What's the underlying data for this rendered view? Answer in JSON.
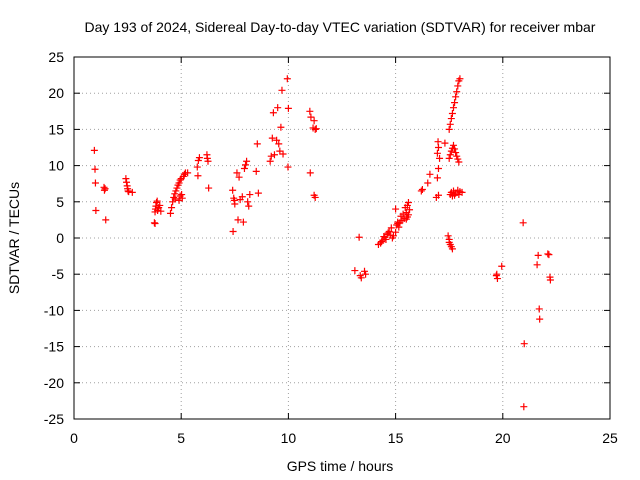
{
  "chart_data": {
    "type": "scatter",
    "title": "Day 193 of 2024, Sidereal Day-to-day VTEC variation (SDTVAR) for receiver mbar",
    "xlabel": "GPS time / hours",
    "ylabel": "SDTVAR / TECUs",
    "xlim": [
      0,
      25
    ],
    "ylim": [
      -25,
      25
    ],
    "xticks": [
      0,
      5,
      10,
      15,
      20,
      25
    ],
    "yticks": [
      25,
      20,
      15,
      10,
      5,
      0,
      -5,
      -10,
      -15,
      -20,
      -25
    ],
    "grid": true,
    "marker": "+",
    "color": "#ff0000",
    "series": [
      {
        "name": "SDTVAR",
        "points": [
          [
            0.95,
            12.1
          ],
          [
            0.98,
            9.5
          ],
          [
            1.0,
            7.6
          ],
          [
            1.02,
            3.8
          ],
          [
            1.4,
            7.0
          ],
          [
            1.42,
            6.6
          ],
          [
            1.45,
            6.8
          ],
          [
            1.48,
            2.5
          ],
          [
            2.42,
            8.2
          ],
          [
            2.45,
            7.7
          ],
          [
            2.48,
            7.2
          ],
          [
            2.5,
            6.8
          ],
          [
            2.52,
            6.5
          ],
          [
            2.55,
            6.4
          ],
          [
            2.72,
            6.3
          ],
          [
            3.75,
            2.1
          ],
          [
            3.78,
            3.6
          ],
          [
            3.8,
            4.0
          ],
          [
            3.82,
            4.4
          ],
          [
            3.85,
            4.9
          ],
          [
            3.88,
            5.1
          ],
          [
            3.9,
            3.8
          ],
          [
            3.95,
            4.2
          ],
          [
            4.0,
            4.5
          ],
          [
            4.05,
            3.7
          ],
          [
            3.78,
            2.0
          ],
          [
            4.5,
            3.4
          ],
          [
            4.55,
            4.2
          ],
          [
            4.6,
            5.0
          ],
          [
            4.65,
            5.6
          ],
          [
            4.7,
            6.1
          ],
          [
            4.72,
            5.4
          ],
          [
            4.75,
            6.5
          ],
          [
            4.8,
            6.9
          ],
          [
            4.85,
            7.3
          ],
          [
            4.9,
            7.6
          ],
          [
            4.95,
            8.0
          ],
          [
            5.0,
            8.2
          ],
          [
            5.02,
            6.0
          ],
          [
            5.05,
            5.5
          ],
          [
            5.1,
            8.5
          ],
          [
            5.15,
            8.8
          ],
          [
            5.2,
            9.0
          ],
          [
            5.3,
            9.0
          ],
          [
            4.9,
            5.2
          ],
          [
            4.95,
            5.8
          ],
          [
            5.75,
            9.8
          ],
          [
            5.8,
            10.7
          ],
          [
            5.85,
            11.1
          ],
          [
            5.78,
            8.6
          ],
          [
            6.2,
            11.5
          ],
          [
            6.22,
            11.0
          ],
          [
            6.25,
            10.6
          ],
          [
            6.28,
            6.9
          ],
          [
            7.4,
            6.6
          ],
          [
            7.45,
            5.5
          ],
          [
            7.48,
            5.2
          ],
          [
            7.5,
            4.7
          ],
          [
            7.42,
            0.9
          ],
          [
            7.6,
            9.0
          ],
          [
            7.7,
            8.4
          ],
          [
            7.65,
            2.5
          ],
          [
            7.75,
            5.3
          ],
          [
            7.85,
            5.7
          ],
          [
            7.9,
            2.2
          ],
          [
            7.95,
            9.6
          ],
          [
            8.0,
            10.1
          ],
          [
            8.05,
            10.6
          ],
          [
            8.1,
            5.0
          ],
          [
            8.15,
            4.4
          ],
          [
            8.2,
            6.0
          ],
          [
            8.5,
            9.2
          ],
          [
            8.55,
            13.0
          ],
          [
            8.6,
            6.2
          ],
          [
            9.15,
            10.6
          ],
          [
            9.2,
            11.3
          ],
          [
            9.25,
            13.8
          ],
          [
            9.3,
            17.3
          ],
          [
            9.35,
            11.5
          ],
          [
            9.45,
            13.5
          ],
          [
            9.5,
            18.0
          ],
          [
            9.55,
            13.0
          ],
          [
            9.6,
            12.0
          ],
          [
            9.65,
            15.3
          ],
          [
            9.7,
            20.4
          ],
          [
            9.75,
            11.6
          ],
          [
            9.95,
            22.0
          ],
          [
            10.0,
            17.9
          ],
          [
            9.98,
            9.8
          ],
          [
            11.0,
            17.5
          ],
          [
            11.05,
            16.7
          ],
          [
            11.02,
            9.0
          ],
          [
            11.15,
            15.2
          ],
          [
            11.2,
            16.2
          ],
          [
            11.25,
            15.0
          ],
          [
            11.3,
            15.1
          ],
          [
            11.2,
            5.9
          ],
          [
            11.25,
            5.6
          ],
          [
            13.1,
            -4.5
          ],
          [
            13.3,
            0.1
          ],
          [
            13.35,
            -5.2
          ],
          [
            13.4,
            -5.5
          ],
          [
            13.55,
            -4.6
          ],
          [
            13.6,
            -5.0
          ],
          [
            14.2,
            -0.9
          ],
          [
            14.3,
            -0.7
          ],
          [
            14.4,
            -0.3
          ],
          [
            14.5,
            0.1
          ],
          [
            14.6,
            0.5
          ],
          [
            14.7,
            0.9
          ],
          [
            14.8,
            1.4
          ],
          [
            14.85,
            0.0
          ],
          [
            14.9,
            0.3
          ],
          [
            15.0,
            0.8
          ],
          [
            15.05,
            1.8
          ],
          [
            15.1,
            2.0
          ],
          [
            15.15,
            1.5
          ],
          [
            15.2,
            2.1
          ],
          [
            15.3,
            2.4
          ],
          [
            15.4,
            2.7
          ],
          [
            15.5,
            3.5
          ],
          [
            15.55,
            4.5
          ],
          [
            15.6,
            4.9
          ],
          [
            15.65,
            3.9
          ],
          [
            15.5,
            2.6
          ],
          [
            15.0,
            4.0
          ],
          [
            15.1,
            2.2
          ],
          [
            14.35,
            -0.5
          ],
          [
            14.45,
            0.2
          ],
          [
            14.55,
            -0.2
          ],
          [
            14.65,
            0.7
          ],
          [
            14.75,
            0.4
          ],
          [
            15.25,
            3.0
          ],
          [
            15.35,
            3.3
          ],
          [
            15.45,
            4.2
          ],
          [
            15.6,
            3.2
          ],
          [
            15.55,
            2.9
          ],
          [
            16.2,
            6.5
          ],
          [
            16.25,
            6.7
          ],
          [
            16.5,
            7.6
          ],
          [
            16.6,
            8.8
          ],
          [
            16.9,
            5.6
          ],
          [
            17.0,
            5.9
          ],
          [
            16.95,
            8.3
          ],
          [
            17.0,
            9.6
          ],
          [
            17.05,
            11.0
          ],
          [
            16.95,
            11.7
          ],
          [
            17.0,
            12.5
          ],
          [
            16.98,
            13.3
          ],
          [
            17.3,
            13.1
          ],
          [
            17.45,
            0.3
          ],
          [
            17.5,
            -0.2
          ],
          [
            17.5,
            -0.6
          ],
          [
            17.55,
            -0.9
          ],
          [
            17.6,
            -1.2
          ],
          [
            17.65,
            -1.5
          ],
          [
            17.5,
            15.0
          ],
          [
            17.55,
            15.7
          ],
          [
            17.6,
            16.5
          ],
          [
            17.65,
            17.2
          ],
          [
            17.7,
            18.0
          ],
          [
            17.75,
            18.7
          ],
          [
            17.8,
            19.5
          ],
          [
            17.85,
            20.2
          ],
          [
            17.9,
            21.0
          ],
          [
            17.95,
            21.7
          ],
          [
            18.0,
            22.0
          ],
          [
            17.5,
            11.0
          ],
          [
            17.55,
            11.5
          ],
          [
            17.6,
            12.0
          ],
          [
            17.65,
            12.4
          ],
          [
            17.7,
            12.8
          ],
          [
            17.75,
            12.3
          ],
          [
            17.8,
            11.8
          ],
          [
            17.85,
            11.3
          ],
          [
            17.9,
            10.9
          ],
          [
            17.95,
            10.5
          ],
          [
            17.55,
            6.0
          ],
          [
            17.6,
            6.3
          ],
          [
            17.7,
            6.5
          ],
          [
            17.8,
            6.2
          ],
          [
            17.9,
            6.6
          ],
          [
            18.0,
            6.4
          ],
          [
            18.1,
            6.3
          ],
          [
            17.65,
            5.8
          ],
          [
            17.75,
            5.9
          ],
          [
            17.95,
            6.0
          ],
          [
            19.7,
            -5.2
          ],
          [
            19.75,
            -5.6
          ],
          [
            19.72,
            -5.0
          ],
          [
            19.95,
            -3.9
          ],
          [
            20.95,
            2.1
          ],
          [
            21.0,
            -14.6
          ],
          [
            20.98,
            -23.3
          ],
          [
            21.6,
            -3.7
          ],
          [
            21.65,
            -2.4
          ],
          [
            21.7,
            -9.8
          ],
          [
            21.72,
            -11.2
          ],
          [
            22.1,
            -2.2
          ],
          [
            22.15,
            -2.3
          ],
          [
            22.2,
            -5.4
          ],
          [
            22.22,
            -5.8
          ]
        ]
      }
    ]
  }
}
